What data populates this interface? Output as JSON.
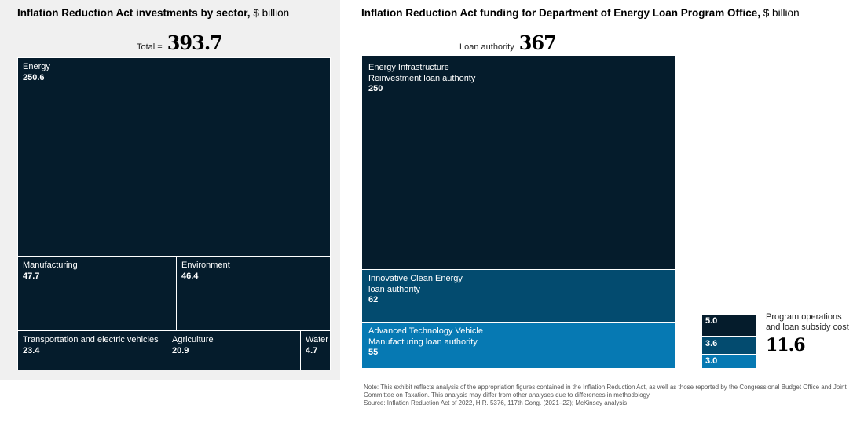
{
  "chart_data": [
    {
      "type": "treemap",
      "title": "Inflation Reduction Act investments by sector,",
      "unit": "$ billion",
      "total_label": "Total =",
      "total": "393.7",
      "cells": [
        {
          "label": "Energy",
          "value": "250.6"
        },
        {
          "label": "Manufacturing",
          "value": "47.7"
        },
        {
          "label": "Environment",
          "value": "46.4"
        },
        {
          "label": "Transportation and electric vehicles",
          "value": "23.4"
        },
        {
          "label": "Agriculture",
          "value": "20.9"
        },
        {
          "label": "Water",
          "value": "4.7"
        }
      ]
    },
    {
      "type": "treemap",
      "title": "Inflation Reduction Act funding for Department of Energy Loan Program Office,",
      "unit": "$ billion",
      "total_label": "Loan authority",
      "total": "367",
      "cells": [
        {
          "label1": "Energy Infrastructure",
          "label2": "Reinvestment loan authority",
          "value": "250"
        },
        {
          "label1": "Innovative Clean Energy",
          "label2": "loan authority",
          "value": "62"
        },
        {
          "label1": "Advanced Technology Vehicle",
          "label2": "Manufacturing loan authority",
          "value": "55"
        }
      ],
      "side": {
        "label1": "Program operations",
        "label2": "and loan subsidy cost",
        "total": "11.6",
        "values": [
          "5.0",
          "3.6",
          "3.0"
        ]
      }
    }
  ],
  "colors": {
    "dark": "#051c2c",
    "mid": "#034b6f",
    "light": "#0679b3"
  },
  "note": "Note: This exhibit reflects analysis of the appropriation figures contained in the Inflation Reduction Act, as well as those reported by the Congressional Budget Office and Joint Committee on Taxation. This analysis may differ from other analyses due to differences in methodology.",
  "source": "Source: Inflation Reduction Act of 2022, H.R. 5376, 117th Cong. (2021–22); McKinsey analysis"
}
